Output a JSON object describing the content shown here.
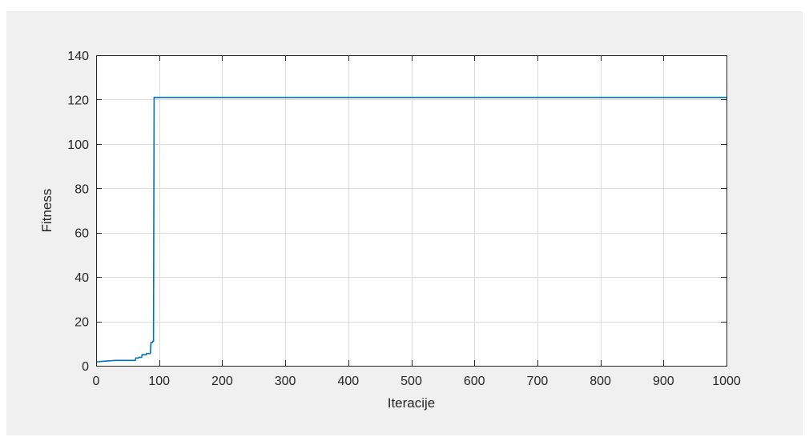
{
  "chart_data": {
    "type": "line",
    "title": "",
    "xlabel": "Iteracije",
    "ylabel": "Fitness",
    "xlim": [
      0,
      1000
    ],
    "ylim": [
      0,
      140
    ],
    "xticks": [
      0,
      100,
      200,
      300,
      400,
      500,
      600,
      700,
      800,
      900,
      1000
    ],
    "yticks": [
      0,
      20,
      40,
      60,
      80,
      100,
      120,
      140
    ],
    "grid": true,
    "legend": "none",
    "series": [
      {
        "color": "#0072bd",
        "x": [
          0,
          3,
          10,
          15,
          20,
          25,
          30,
          35,
          40,
          45,
          50,
          55,
          62,
          63,
          67,
          68,
          72,
          73,
          79,
          80,
          86,
          87,
          89,
          90,
          91,
          92,
          1000
        ],
        "y": [
          1.8,
          1.8,
          2.0,
          2.1,
          2.2,
          2.3,
          2.4,
          2.4,
          2.4,
          2.4,
          2.4,
          2.4,
          2.4,
          3.5,
          3.5,
          3.8,
          3.8,
          5.0,
          5.0,
          5.5,
          5.5,
          10.5,
          10.5,
          11.0,
          11.0,
          121.0,
          121.0
        ]
      }
    ]
  },
  "colors": {
    "figure_background": "#f0f0f0",
    "axes_background": "#ffffff",
    "grid": "#dcdcdc",
    "axis": "#262626"
  }
}
